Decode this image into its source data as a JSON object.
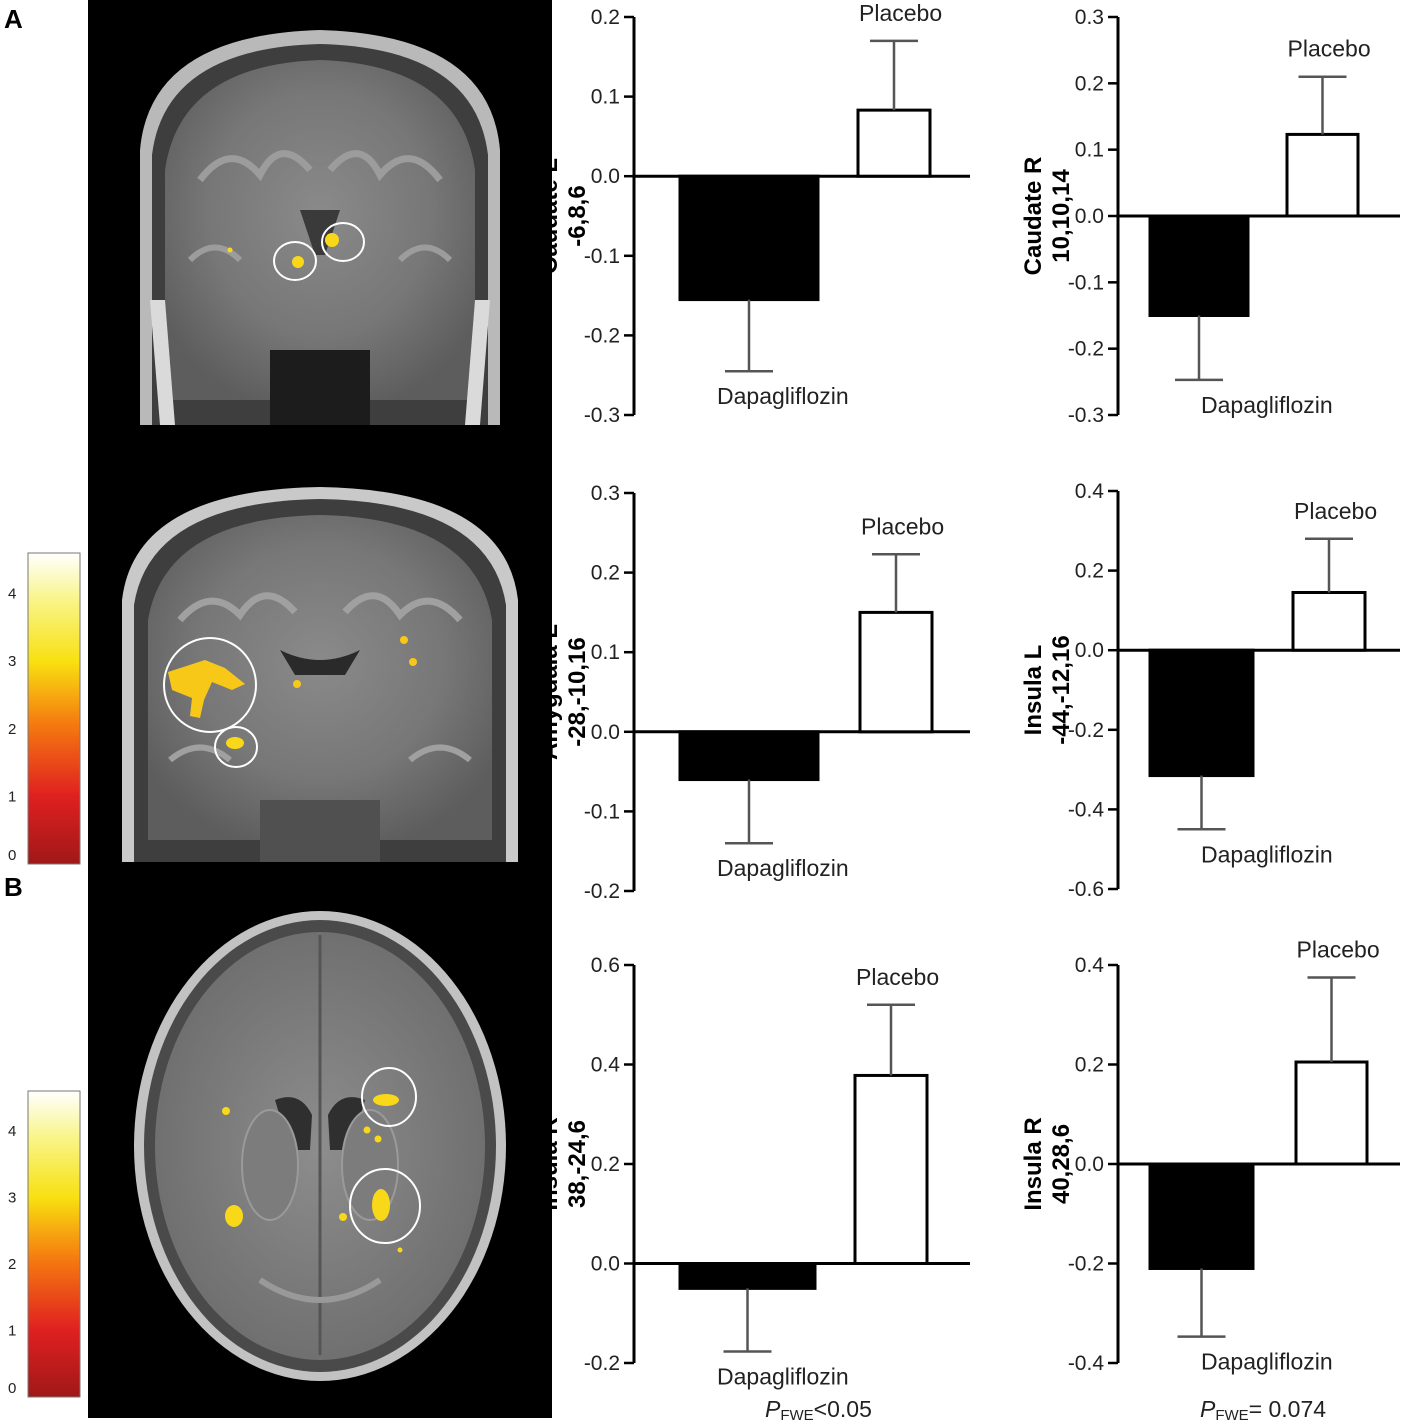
{
  "panel_labels": {
    "a": "A",
    "b": "B"
  },
  "colorbar": {
    "ticks": [
      "0",
      "1",
      "2",
      "3",
      "4"
    ],
    "range": [
      0,
      4.6
    ]
  },
  "brain_images": [
    {
      "view": "coronal",
      "highlights": 2
    },
    {
      "view": "coronal",
      "highlights": 2
    },
    {
      "view": "axial",
      "highlights": 2
    }
  ],
  "group_labels": {
    "treatment": "Dapagliflozin",
    "control": "Placebo"
  },
  "footnotes": [
    {
      "p": "P",
      "sub": "FWE",
      "rest": "<0.05"
    },
    {
      "p": "P",
      "sub": "FWE",
      "rest": "= 0.074"
    }
  ],
  "colors": {
    "treatment_bar": "#000000",
    "control_bar": "#ffffff",
    "error_bar": "#555555"
  },
  "chart_data": [
    {
      "type": "bar",
      "region": "Caudate L",
      "coords": "-6,8,6",
      "categories": [
        "Dapagliflozin",
        "Placebo"
      ],
      "values": [
        -0.155,
        0.083
      ],
      "errors": [
        0.09,
        0.087
      ],
      "ylim": [
        -0.3,
        0.2
      ],
      "yticks": [
        "-0.3",
        "-0.2",
        "-0.1",
        "0.0",
        "0.1",
        "0.2"
      ]
    },
    {
      "type": "bar",
      "region": "Caudate R",
      "coords": "10,10,14",
      "categories": [
        "Dapagliflozin",
        "Placebo"
      ],
      "values": [
        -0.15,
        0.123
      ],
      "errors": [
        0.097,
        0.087
      ],
      "ylim": [
        -0.3,
        0.3
      ],
      "yticks": [
        "-0.3",
        "-0.2",
        "-0.1",
        "0.0",
        "0.1",
        "0.2",
        "0.3"
      ]
    },
    {
      "type": "bar",
      "region": "Amygdala L",
      "coords": "-28,-10,16",
      "categories": [
        "Dapagliflozin",
        "Placebo"
      ],
      "values": [
        -0.06,
        0.15
      ],
      "errors": [
        0.08,
        0.073
      ],
      "ylim": [
        -0.2,
        0.3
      ],
      "yticks": [
        "-0.2",
        "-0.1",
        "0.0",
        "0.1",
        "0.2",
        "0.3"
      ]
    },
    {
      "type": "bar",
      "region": "Insula L",
      "coords": "-44,-12,16",
      "categories": [
        "Dapagliflozin",
        "Placebo"
      ],
      "values": [
        -0.315,
        0.145
      ],
      "errors": [
        0.135,
        0.135
      ],
      "ylim": [
        -0.6,
        0.4
      ],
      "yticks": [
        "-0.6",
        "-0.4",
        "-0.2",
        "0.0",
        "0.2",
        "0.4"
      ]
    },
    {
      "type": "bar",
      "region": "Insula R",
      "coords": "38,-24,6",
      "categories": [
        "Dapagliflozin",
        "Placebo"
      ],
      "values": [
        -0.05,
        0.378
      ],
      "errors": [
        0.127,
        0.142
      ],
      "ylim": [
        -0.2,
        0.6
      ],
      "yticks": [
        "-0.2",
        "0.0",
        "0.2",
        "0.4",
        "0.6"
      ]
    },
    {
      "type": "bar",
      "region": "Insula R",
      "coords": "40,28,6",
      "categories": [
        "Dapagliflozin",
        "Placebo"
      ],
      "values": [
        -0.21,
        0.205
      ],
      "errors": [
        0.137,
        0.17
      ],
      "ylim": [
        -0.4,
        0.4
      ],
      "yticks": [
        "-0.4",
        "-0.2",
        "0.0",
        "0.2",
        "0.4"
      ]
    }
  ]
}
